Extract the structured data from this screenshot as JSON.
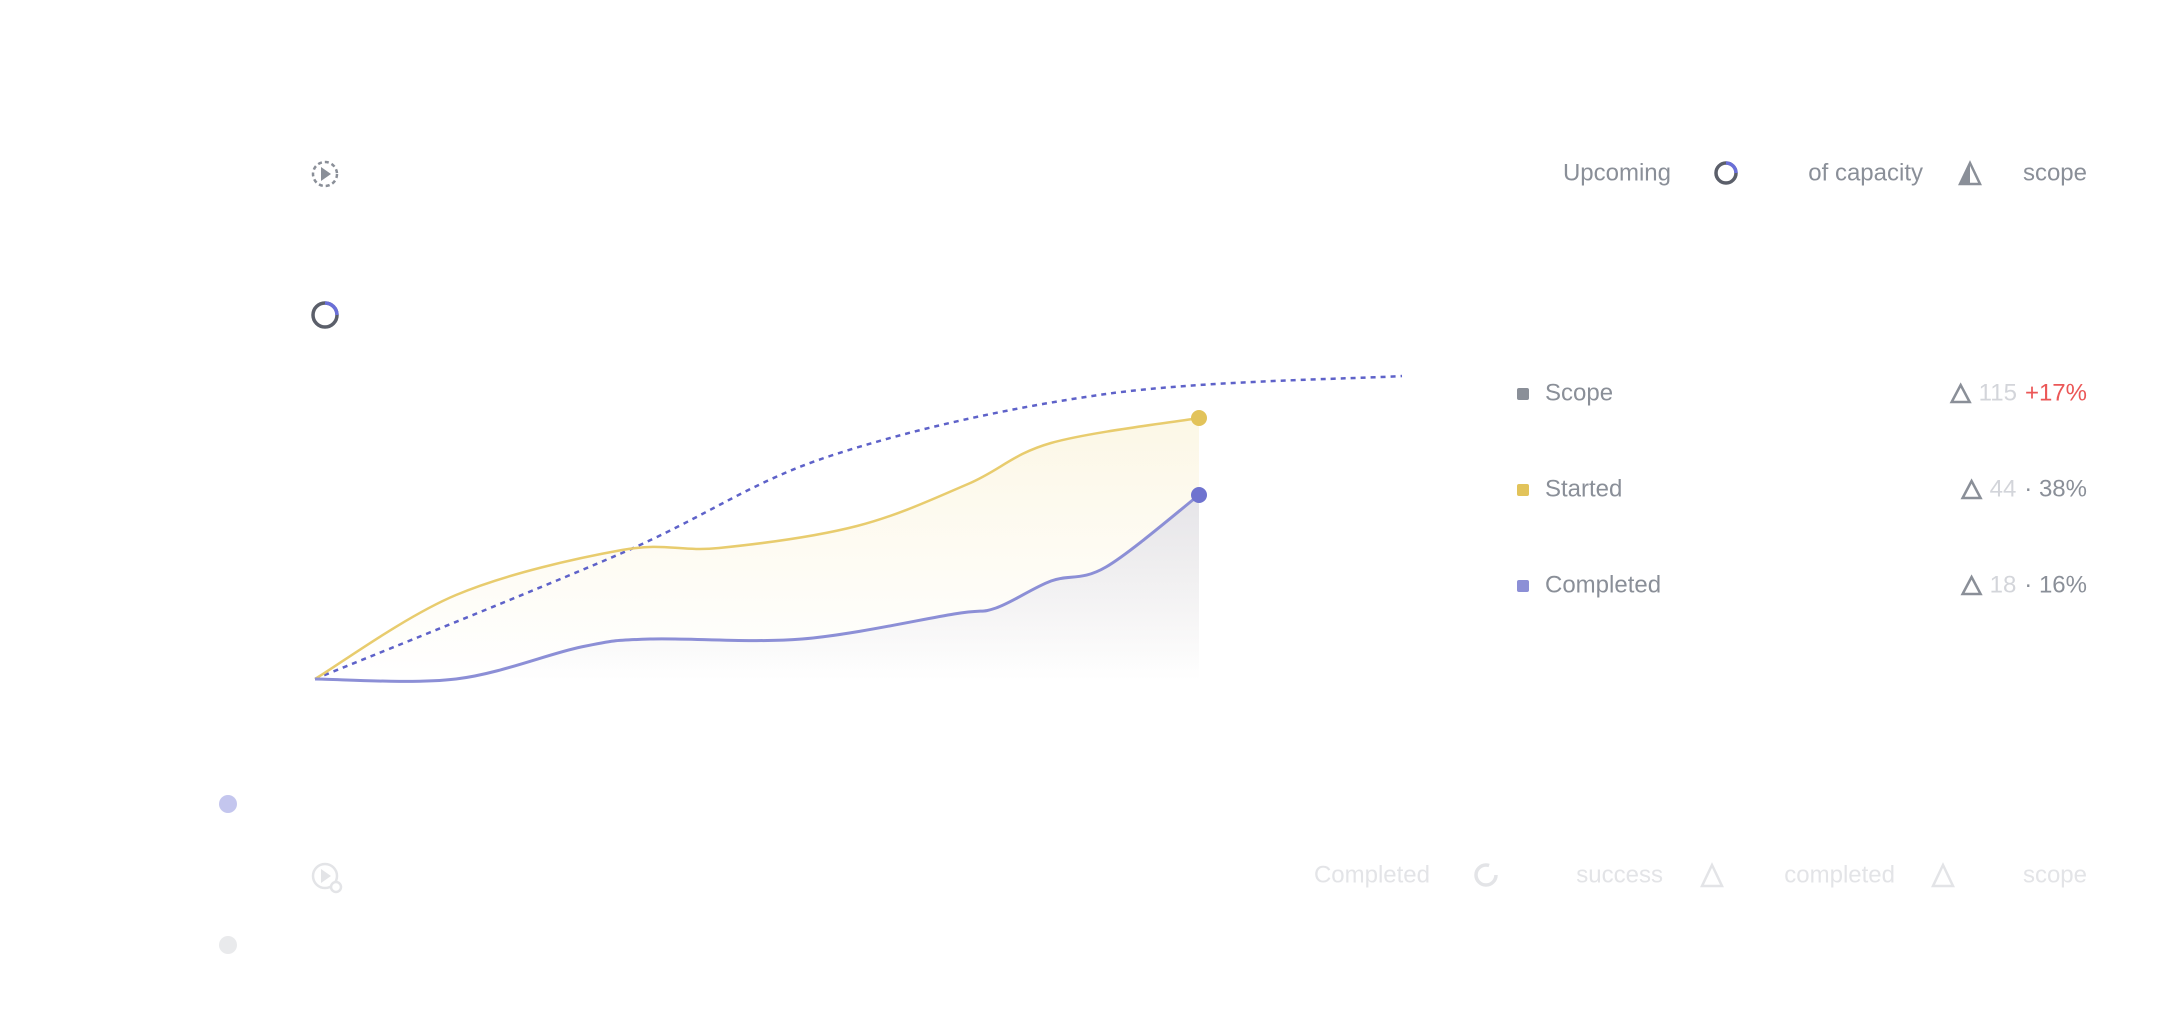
{
  "header": {
    "status": "Upcoming",
    "capacity": "of capacity",
    "scope": "scope"
  },
  "legend": [
    {
      "name": "Scope",
      "count": "115",
      "detail": "+17%"
    },
    {
      "name": "Started",
      "count": "44",
      "detail": "· 38%"
    },
    {
      "name": "Completed",
      "count": "18",
      "detail": "· 16%"
    }
  ],
  "footer": {
    "status": "Completed",
    "success": "success",
    "completed": "completed",
    "scope": "scope"
  }
}
